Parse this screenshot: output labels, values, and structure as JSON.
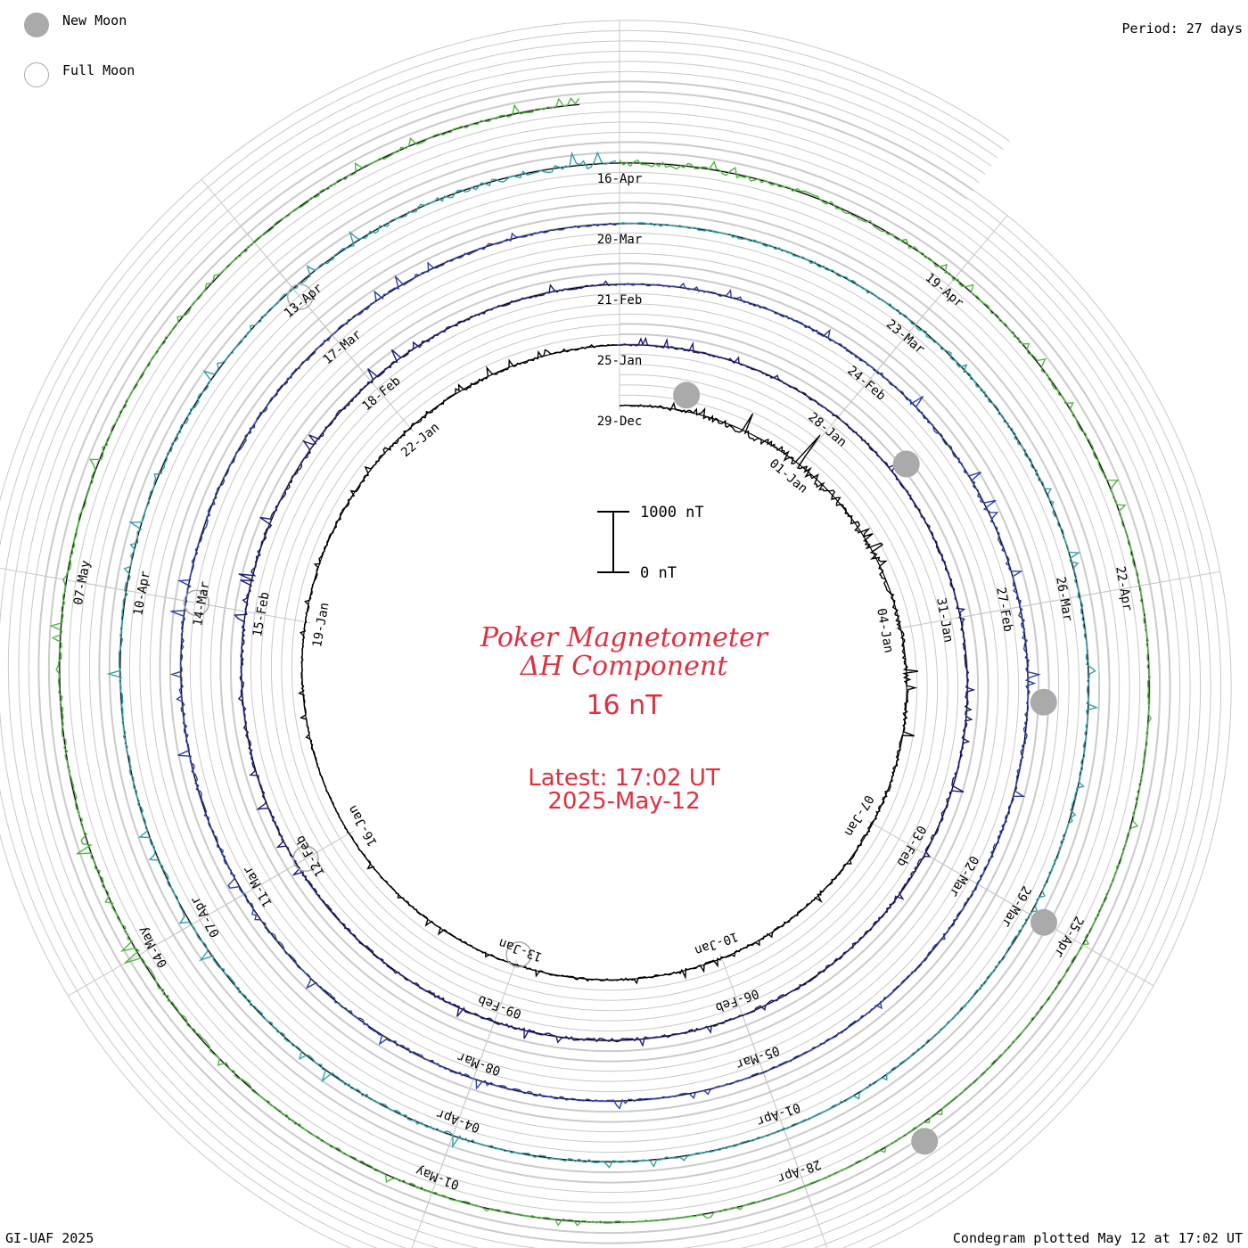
{
  "header": {
    "period_label": "Period: 27 days"
  },
  "legend": {
    "new_moon_label": "New Moon",
    "full_moon_label": "Full Moon",
    "new_moon_color": "#aaaaaa",
    "full_moon_color": "#aaaaaa"
  },
  "center": {
    "title_line1": "Poker Magnetometer",
    "title_line2": "ΔH Component",
    "current_value": "16 nT",
    "latest_time": "Latest: 17:02 UT",
    "latest_date": "2025-May-12",
    "text_color": "#e03040"
  },
  "footer": {
    "credit": "GI-UAF 2025",
    "plotted": "Condegram plotted May 12 at 17:02 UT"
  },
  "chart_data": {
    "type": "line",
    "variant": "condegram-spiral",
    "title": "Poker Magnetometer ΔH Component",
    "period_days": 27,
    "start_date": "2024-12-29",
    "end_date": "2025-05-12",
    "scale_bar": {
      "top_label": "1000 nT",
      "bottom_label": "0 nT",
      "value": 1000
    },
    "units": "nT",
    "grid": true,
    "series_colors": [
      "#000000",
      "#1a1a80",
      "#2c3fb0",
      "#2fa0a8",
      "#50b840",
      "#b0a020",
      "#c07020",
      "#c02020"
    ],
    "date_labels": [
      "29-Dec",
      "01-Jan",
      "04-Jan",
      "07-Jan",
      "10-Jan",
      "13-Jan",
      "16-Jan",
      "19-Jan",
      "22-Jan",
      "25-Jan",
      "28-Jan",
      "31-Jan",
      "03-Feb",
      "06-Feb",
      "09-Feb",
      "12-Feb",
      "15-Feb",
      "18-Feb",
      "21-Feb",
      "24-Feb",
      "27-Feb",
      "02-Mar",
      "05-Mar",
      "08-Mar",
      "11-Mar",
      "14-Mar",
      "17-Mar",
      "20-Mar",
      "23-Mar",
      "26-Mar",
      "29-Mar",
      "01-Apr",
      "04-Apr",
      "07-Apr",
      "10-Apr",
      "13-Apr",
      "16-Apr",
      "19-Apr",
      "22-Apr",
      "25-Apr",
      "28-Apr",
      "01-May",
      "04-May",
      "07-May"
    ],
    "new_moons": [
      "2024-12-30",
      "2025-01-29",
      "2025-02-28",
      "2025-03-29",
      "2025-04-27"
    ],
    "full_moons": [
      "2025-01-13",
      "2025-02-12",
      "2025-03-14",
      "2025-04-13"
    ],
    "daily_max_delta_h": [
      {
        "date": "2024-12-29",
        "value": 60
      },
      {
        "date": "2025-01-01",
        "value": 900
      },
      {
        "date": "2025-01-04",
        "value": 350
      },
      {
        "date": "2025-01-07",
        "value": 250
      },
      {
        "date": "2025-01-10",
        "value": 200
      },
      {
        "date": "2025-01-13",
        "value": 150
      },
      {
        "date": "2025-01-16",
        "value": 120
      },
      {
        "date": "2025-01-19",
        "value": 150
      },
      {
        "date": "2025-01-22",
        "value": 300
      },
      {
        "date": "2025-01-25",
        "value": 150
      },
      {
        "date": "2025-01-28",
        "value": 200
      },
      {
        "date": "2025-01-31",
        "value": 250
      },
      {
        "date": "2025-02-03",
        "value": 300
      },
      {
        "date": "2025-02-06",
        "value": 250
      },
      {
        "date": "2025-02-09",
        "value": 300
      },
      {
        "date": "2025-02-12",
        "value": 200
      },
      {
        "date": "2025-02-15",
        "value": 350
      },
      {
        "date": "2025-02-18",
        "value": 300
      },
      {
        "date": "2025-02-21",
        "value": 150
      },
      {
        "date": "2025-02-24",
        "value": 250
      },
      {
        "date": "2025-02-27",
        "value": 400
      },
      {
        "date": "2025-03-02",
        "value": 250
      },
      {
        "date": "2025-03-05",
        "value": 150
      },
      {
        "date": "2025-03-08",
        "value": 250
      },
      {
        "date": "2025-03-11",
        "value": 300
      },
      {
        "date": "2025-03-14",
        "value": 350
      },
      {
        "date": "2025-03-17",
        "value": 250
      },
      {
        "date": "2025-03-20",
        "value": 200
      },
      {
        "date": "2025-03-23",
        "value": 300
      },
      {
        "date": "2025-03-26",
        "value": 250
      },
      {
        "date": "2025-03-29",
        "value": 200
      },
      {
        "date": "2025-04-01",
        "value": 150
      },
      {
        "date": "2025-04-04",
        "value": 300
      },
      {
        "date": "2025-04-07",
        "value": 250
      },
      {
        "date": "2025-04-10",
        "value": 300
      },
      {
        "date": "2025-04-13",
        "value": 250
      },
      {
        "date": "2025-04-16",
        "value": 600
      },
      {
        "date": "2025-04-19",
        "value": 300
      },
      {
        "date": "2025-04-22",
        "value": 200
      },
      {
        "date": "2025-04-25",
        "value": 200
      },
      {
        "date": "2025-04-28",
        "value": 100
      },
      {
        "date": "2025-05-01",
        "value": 200
      },
      {
        "date": "2025-05-04",
        "value": 350
      },
      {
        "date": "2025-05-07",
        "value": 250
      }
    ]
  }
}
